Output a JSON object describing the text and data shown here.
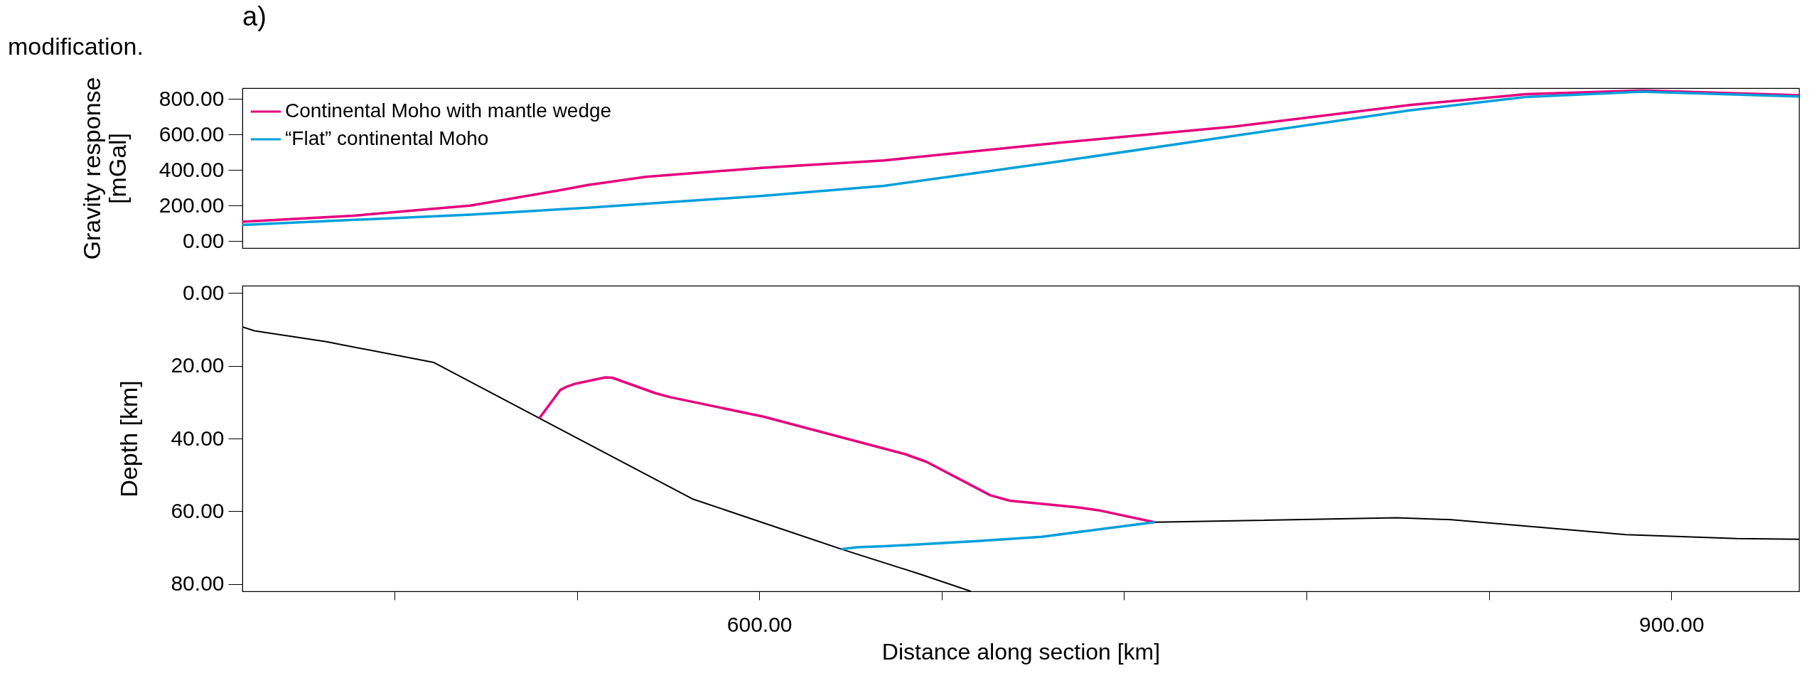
{
  "chart_data": [
    {
      "type": "line",
      "title": "a)",
      "ylabel": "Gravity response\n[mGal]",
      "xlim": [
        430,
        942
      ],
      "ylim": [
        -40,
        860
      ],
      "yticks": [
        {
          "value": 0,
          "label": "0.00"
        },
        {
          "value": 200,
          "label": "200.00"
        },
        {
          "value": 400,
          "label": "400.00"
        },
        {
          "value": 600,
          "label": "600.00"
        },
        {
          "value": 800,
          "label": "800.00"
        }
      ],
      "tick_labels": "y",
      "grid": false,
      "legend": "top left",
      "annotations": [
        "modification."
      ],
      "series": [
        {
          "name": "Continental Moho with mantle wedge",
          "color": "#e6007e",
          "x": [
            430,
            466.5,
            505,
            534,
            543.7,
            562.8,
            601.4,
            641,
            698.8,
            756.3,
            814,
            852,
            890.4,
            942
          ],
          "values": [
            108,
            142,
            199,
            284,
            315,
            361,
            412,
            453,
            553,
            644,
            765,
            826,
            847,
            820
          ]
        },
        {
          "name": "“Flat” continental Moho",
          "color": "#009fda",
          "x": [
            430,
            505,
            543.7,
            601.4,
            641,
            698.8,
            756.3,
            814,
            852,
            890.4,
            942
          ],
          "values": [
            90,
            148,
            187,
            254,
            310,
            448,
            592,
            735,
            810,
            840,
            813
          ]
        }
      ]
    },
    {
      "type": "line",
      "xlabel": "Distance along section [km]",
      "ylabel": "Depth [km]",
      "xlim": [
        430,
        942
      ],
      "ylim": [
        82,
        -2
      ],
      "xticks": [
        {
          "value": 480,
          "label": null
        },
        {
          "value": 540,
          "label": null
        },
        {
          "value": 600,
          "label": "600.00"
        },
        {
          "value": 660,
          "label": null
        },
        {
          "value": 720,
          "label": null
        },
        {
          "value": 780,
          "label": null
        },
        {
          "value": 840,
          "label": null
        },
        {
          "value": 900,
          "label": "900.00"
        }
      ],
      "yticks": [
        {
          "value": 0,
          "label": "0.00"
        },
        {
          "value": 20,
          "label": "20.00"
        },
        {
          "value": 40,
          "label": "40.00"
        },
        {
          "value": 60,
          "label": "60.00"
        },
        {
          "value": 80,
          "label": "80.00"
        }
      ],
      "grid": false,
      "legend": false,
      "series": [
        {
          "color": "#000000",
          "x": [
            430,
            434,
            457.6,
            493,
            578,
            627,
            653,
            669.6
          ],
          "values": [
            9.3,
            10.4,
            13.4,
            19.1,
            56.6,
            70.4,
            77.3,
            82
          ]
        },
        {
          "color": "#000000",
          "x": [
            730,
            809.6,
            827.7,
            885,
            921.5,
            942
          ],
          "values": [
            63,
            61.8,
            62.3,
            66.4,
            67.5,
            67.7
          ]
        },
        {
          "color": "#e6007e",
          "x": [
            527.7,
            534.5,
            536.8,
            539.7,
            549.4,
            551.7,
            565.7,
            570.5,
            601.4,
            648,
            655,
            676,
            682.4,
            704.5,
            712.1,
            730
          ],
          "values": [
            34.4,
            26.7,
            25.7,
            24.9,
            23.2,
            23.3,
            27.5,
            28.6,
            34,
            44.3,
            46.4,
            55.6,
            57.1,
            58.9,
            59.8,
            63
          ]
        },
        {
          "color": "#009fda",
          "x": [
            627,
            632.2,
            641.3,
            671.9,
            693,
            713.2,
            730
          ],
          "values": [
            70.4,
            69.9,
            69.6,
            68.2,
            67,
            64.8,
            63
          ]
        }
      ]
    }
  ]
}
